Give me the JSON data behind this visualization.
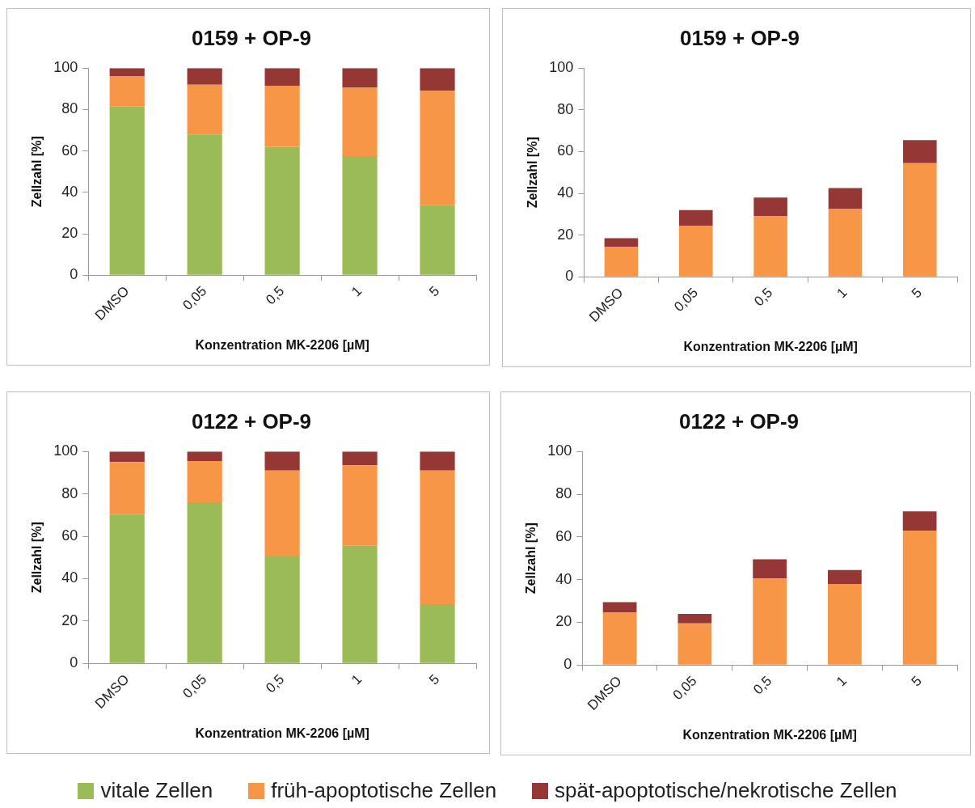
{
  "chart_data": [
    {
      "type": "bar",
      "stacked": true,
      "title": "0159 + OP-9",
      "xlabel": "Konzentration MK-2206 [µM]",
      "ylabel": "Zellzahl [%]",
      "categories": [
        "DMSO",
        "0,05",
        "0,5",
        "1",
        "5"
      ],
      "ylim": [
        0,
        100
      ],
      "yticks": [
        0,
        20,
        40,
        60,
        80,
        100
      ],
      "grid": false,
      "legend": "bottom",
      "series": [
        {
          "name": "vitale Zellen",
          "color": "#9bbb59",
          "values": [
            81.5,
            68,
            62,
            57.5,
            34
          ]
        },
        {
          "name": "früh-apoptotische Zellen",
          "color": "#f79646",
          "values": [
            14.5,
            24,
            29.5,
            33,
            55
          ]
        },
        {
          "name": "spät-apoptotische/nekrotische Zellen",
          "color": "#953735",
          "values": [
            4,
            8,
            8.5,
            9.5,
            11
          ]
        }
      ]
    },
    {
      "type": "bar",
      "stacked": true,
      "title": "0159 + OP-9",
      "xlabel": "Konzentration MK-2206 [µM]",
      "ylabel": "Zellzahl [%]",
      "categories": [
        "DMSO",
        "0,05",
        "0,5",
        "1",
        "5"
      ],
      "ylim": [
        0,
        100
      ],
      "yticks": [
        0,
        20,
        40,
        60,
        80,
        100
      ],
      "grid": false,
      "series": [
        {
          "color": "#f79646",
          "values": [
            14.5,
            24.5,
            29,
            32.5,
            54.5
          ]
        },
        {
          "color": "#953735",
          "values": [
            4,
            7.5,
            9,
            10,
            11
          ]
        }
      ]
    },
    {
      "type": "bar",
      "stacked": true,
      "title": "0122 + OP-9",
      "xlabel": "Konzentration MK-2206 [µM]",
      "ylabel": "Zellzahl [%]",
      "categories": [
        "DMSO",
        "0,05",
        "0,5",
        "1",
        "5"
      ],
      "ylim": [
        0,
        100
      ],
      "yticks": [
        0,
        20,
        40,
        60,
        80,
        100
      ],
      "grid": false,
      "series": [
        {
          "color": "#9bbb59",
          "values": [
            70.5,
            76,
            50.5,
            55.5,
            28
          ]
        },
        {
          "color": "#f79646",
          "values": [
            24.5,
            19.5,
            40.5,
            38,
            63
          ]
        },
        {
          "color": "#953735",
          "values": [
            5,
            4.5,
            9,
            6.5,
            9
          ]
        }
      ]
    },
    {
      "type": "bar",
      "stacked": true,
      "title": "0122 + OP-9",
      "xlabel": "Konzentration MK-2206 [µM]",
      "ylabel": "Zellzahl [%]",
      "categories": [
        "DMSO",
        "0,05",
        "0,5",
        "1",
        "5"
      ],
      "ylim": [
        0,
        100
      ],
      "yticks": [
        0,
        20,
        40,
        60,
        80,
        100
      ],
      "grid": false,
      "series": [
        {
          "color": "#f79646",
          "values": [
            24.5,
            19.5,
            40.5,
            38,
            63
          ]
        },
        {
          "color": "#953735",
          "values": [
            5,
            4.5,
            9,
            6.5,
            9
          ]
        }
      ]
    }
  ]
}
